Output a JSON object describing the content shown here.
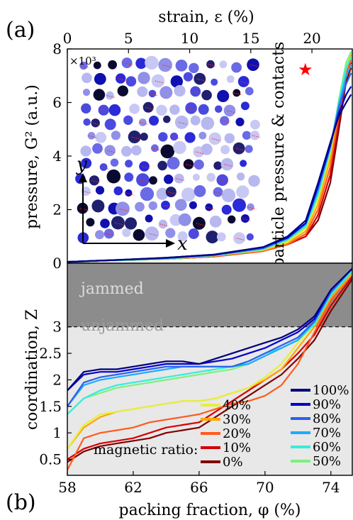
{
  "panel_a_label": "(a)",
  "panel_b_label": "(b)",
  "chart_data": [
    {
      "type": "line",
      "panel": "a",
      "xlabel_top": "strain, ε (%)",
      "xlim_top": [
        0,
        23.3
      ],
      "xticks_top": [
        0,
        5,
        10,
        15,
        20
      ],
      "ylabel": "pressure, G² (a.u.)",
      "ylim": [
        0,
        8
      ],
      "yticks": [
        0,
        2,
        4,
        6,
        8
      ],
      "multiplier": "×10³",
      "inset_label": "particle pressure & contacts",
      "inset_axis_y": "y",
      "inset_axis_x": "x",
      "colors": [
        "#7f0000",
        "#d40000",
        "#ff5a1f",
        "#ffa500",
        "#e6f03c",
        "#7ff07f",
        "#33eedd",
        "#1eaaff",
        "#2a62ee",
        "#0000cc",
        "#000080"
      ],
      "series": [
        {
          "name": "0%",
          "x": [
            0,
            4,
            8,
            12,
            16,
            18,
            19.5,
            20.5,
            21.5,
            22.2,
            22.8,
            23.2
          ],
          "y": [
            0.05,
            0.1,
            0.15,
            0.25,
            0.45,
            0.7,
            1.0,
            1.6,
            3.0,
            5.0,
            6.8,
            7.3
          ]
        },
        {
          "name": "10%",
          "x": [
            0,
            4,
            8,
            12,
            16,
            18,
            19.5,
            20.5,
            21.5,
            22.2,
            22.8,
            23.2
          ],
          "y": [
            0.05,
            0.1,
            0.15,
            0.25,
            0.45,
            0.7,
            1.0,
            1.8,
            3.3,
            5.3,
            7.0,
            7.5
          ]
        },
        {
          "name": "20%",
          "x": [
            0,
            4,
            8,
            12,
            16,
            18,
            19.5,
            20.5,
            21.5,
            22.2,
            22.8,
            23.2
          ],
          "y": [
            0.05,
            0.1,
            0.15,
            0.25,
            0.45,
            0.7,
            1.1,
            2.0,
            3.6,
            5.5,
            7.1,
            7.6
          ]
        },
        {
          "name": "30%",
          "x": [
            0,
            4,
            8,
            12,
            16,
            18,
            19.5,
            20.5,
            21.5,
            22.2,
            22.8,
            23.2
          ],
          "y": [
            0.05,
            0.1,
            0.15,
            0.28,
            0.48,
            0.75,
            1.2,
            2.2,
            3.9,
            5.8,
            7.3,
            7.8
          ]
        },
        {
          "name": "40%",
          "x": [
            0,
            4,
            8,
            12,
            16,
            18,
            19.5,
            20.5,
            21.5,
            22.2,
            22.8,
            23.2
          ],
          "y": [
            0.05,
            0.1,
            0.15,
            0.28,
            0.5,
            0.8,
            1.3,
            2.4,
            4.1,
            6.0,
            7.4,
            7.9
          ]
        },
        {
          "name": "50%",
          "x": [
            0,
            4,
            8,
            12,
            16,
            18,
            19.5,
            20.5,
            21.5,
            22.2,
            22.8,
            23.2
          ],
          "y": [
            0.05,
            0.1,
            0.15,
            0.28,
            0.5,
            0.85,
            1.35,
            2.5,
            4.2,
            6.1,
            7.5,
            7.9
          ]
        },
        {
          "name": "60%",
          "x": [
            0,
            4,
            8,
            12,
            16,
            18,
            19.5,
            20.5,
            21.5,
            22.2,
            22.8,
            23.2
          ],
          "y": [
            0.05,
            0.1,
            0.18,
            0.3,
            0.55,
            0.9,
            1.4,
            2.6,
            4.3,
            6.0,
            7.3,
            7.7
          ]
        },
        {
          "name": "70%",
          "x": [
            0,
            4,
            8,
            12,
            16,
            18,
            19.5,
            20.5,
            21.5,
            22.2,
            22.8,
            23.2
          ],
          "y": [
            0.05,
            0.12,
            0.18,
            0.3,
            0.55,
            0.9,
            1.45,
            2.7,
            4.3,
            5.9,
            7.0,
            7.4
          ]
        },
        {
          "name": "80%",
          "x": [
            0,
            4,
            8,
            12,
            16,
            18,
            19.5,
            20.5,
            21.5,
            22.2,
            22.8,
            23.2
          ],
          "y": [
            0.05,
            0.12,
            0.18,
            0.3,
            0.55,
            0.95,
            1.5,
            2.8,
            4.4,
            5.8,
            6.7,
            7.1
          ]
        },
        {
          "name": "90%",
          "x": [
            0,
            4,
            8,
            12,
            16,
            18,
            19.5,
            20.5,
            21.5,
            22.2,
            22.8,
            23.2
          ],
          "y": [
            0.05,
            0.12,
            0.2,
            0.32,
            0.6,
            0.95,
            1.5,
            2.9,
            4.4,
            5.6,
            6.3,
            6.6
          ]
        },
        {
          "name": "100%",
          "x": [
            0,
            4,
            8,
            12,
            16,
            18,
            19.5,
            20.5,
            21.5,
            22.2,
            22.8,
            23.2
          ],
          "y": [
            0.05,
            0.12,
            0.2,
            0.32,
            0.6,
            1.0,
            1.6,
            3.0,
            4.5,
            5.5,
            6.0,
            6.3
          ]
        }
      ]
    },
    {
      "type": "line",
      "panel": "b",
      "xlabel": "packing fraction, φ (%)",
      "xlim": [
        58,
        75.3
      ],
      "xticks": [
        58,
        62,
        66,
        70,
        74
      ],
      "ylabel": "coordination, Z",
      "ylim": [
        0.2,
        4.2
      ],
      "yticks": [
        0.5,
        1,
        1.5,
        2,
        2.5,
        3
      ],
      "jamming_threshold": 3,
      "region_top": "jammed",
      "region_bottom": "unjammed",
      "legend_title": "magnetic ratio:",
      "colors": [
        "#7f0000",
        "#d40000",
        "#ff5a1f",
        "#ffa500",
        "#e6f03c",
        "#7ff07f",
        "#33eedd",
        "#1eaaff",
        "#2a62ee",
        "#0000cc",
        "#000080"
      ],
      "series": [
        {
          "name": "0%",
          "x": [
            58,
            59,
            60,
            61,
            62,
            63,
            64,
            65,
            66,
            67,
            68,
            69,
            70,
            71,
            72,
            73,
            74,
            75.3
          ],
          "y": [
            0.45,
            0.65,
            0.75,
            0.8,
            0.85,
            0.9,
            1.0,
            1.05,
            1.1,
            1.3,
            1.5,
            1.7,
            1.9,
            2.1,
            2.4,
            2.75,
            3.3,
            3.9
          ]
        },
        {
          "name": "10%",
          "x": [
            58,
            59,
            60,
            61,
            62,
            63,
            64,
            65,
            66,
            67,
            68,
            69,
            70,
            71,
            72,
            73,
            74,
            75.3
          ],
          "y": [
            0.5,
            0.7,
            0.8,
            0.85,
            0.9,
            1.0,
            1.1,
            1.15,
            1.2,
            1.4,
            1.6,
            1.8,
            2.0,
            2.2,
            2.5,
            2.85,
            3.4,
            3.95
          ]
        },
        {
          "name": "20%",
          "x": [
            58,
            59,
            60,
            61,
            62,
            63,
            64,
            65,
            66,
            67,
            68,
            69,
            70,
            71,
            72,
            73,
            74,
            75.3
          ],
          "y": [
            0.3,
            0.9,
            1.0,
            1.05,
            1.1,
            1.2,
            1.25,
            1.3,
            1.35,
            1.45,
            1.55,
            1.6,
            1.7,
            1.9,
            2.3,
            2.9,
            3.5,
            4.0
          ]
        },
        {
          "name": "30%",
          "x": [
            58,
            59,
            60,
            61,
            62,
            63,
            64,
            65,
            66,
            67,
            68,
            69,
            70,
            71,
            72,
            73,
            74,
            75.3
          ],
          "y": [
            0.7,
            1.1,
            1.3,
            1.4,
            1.45,
            1.5,
            1.55,
            1.6,
            1.6,
            1.65,
            1.75,
            1.85,
            2.0,
            2.2,
            2.6,
            3.0,
            3.55,
            4.0
          ]
        },
        {
          "name": "40%",
          "x": [
            58,
            59,
            60,
            61,
            62,
            63,
            64,
            65,
            66,
            67,
            68,
            69,
            70,
            71,
            72,
            73,
            74,
            75.3
          ],
          "y": [
            0.7,
            1.15,
            1.35,
            1.4,
            1.45,
            1.5,
            1.55,
            1.6,
            1.6,
            1.65,
            1.75,
            1.85,
            2.05,
            2.3,
            2.7,
            3.05,
            3.6,
            4.05
          ]
        },
        {
          "name": "50%",
          "x": [
            58,
            59,
            60,
            61,
            62,
            63,
            64,
            65,
            66,
            67,
            68,
            69,
            70,
            71,
            72,
            73,
            74,
            75.3
          ],
          "y": [
            1.35,
            1.65,
            1.75,
            1.85,
            1.9,
            1.95,
            2.0,
            2.05,
            2.1,
            2.15,
            2.2,
            2.3,
            2.45,
            2.6,
            2.75,
            3.05,
            3.6,
            4.05
          ]
        },
        {
          "name": "60%",
          "x": [
            58,
            59,
            60,
            61,
            62,
            63,
            64,
            65,
            66,
            67,
            68,
            69,
            70,
            71,
            72,
            73,
            74,
            75.3
          ],
          "y": [
            1.35,
            1.65,
            1.8,
            1.9,
            1.95,
            2.0,
            2.05,
            2.1,
            2.15,
            2.2,
            2.25,
            2.35,
            2.5,
            2.6,
            2.75,
            3.05,
            3.6,
            4.05
          ]
        },
        {
          "name": "70%",
          "x": [
            58,
            59,
            60,
            61,
            62,
            63,
            64,
            65,
            66,
            67,
            68,
            69,
            70,
            71,
            72,
            73,
            74,
            75.3
          ],
          "y": [
            1.5,
            1.9,
            2.0,
            2.05,
            2.1,
            2.15,
            2.2,
            2.25,
            2.25,
            2.25,
            2.25,
            2.3,
            2.45,
            2.6,
            2.75,
            3.1,
            3.65,
            4.1
          ]
        },
        {
          "name": "80%",
          "x": [
            58,
            59,
            60,
            61,
            62,
            63,
            64,
            65,
            66,
            67,
            68,
            69,
            70,
            71,
            72,
            73,
            74,
            75.3
          ],
          "y": [
            1.5,
            1.95,
            2.05,
            2.1,
            2.15,
            2.2,
            2.25,
            2.25,
            2.25,
            2.25,
            2.25,
            2.35,
            2.5,
            2.65,
            2.8,
            3.1,
            3.65,
            4.1
          ]
        },
        {
          "name": "90%",
          "x": [
            58,
            59,
            60,
            61,
            62,
            63,
            64,
            65,
            66,
            67,
            68,
            69,
            70,
            71,
            72,
            73,
            74,
            75.3
          ],
          "y": [
            1.8,
            2.1,
            2.15,
            2.15,
            2.2,
            2.25,
            2.3,
            2.3,
            2.3,
            2.35,
            2.4,
            2.5,
            2.6,
            2.75,
            2.9,
            3.15,
            3.7,
            4.1
          ]
        },
        {
          "name": "100%",
          "x": [
            58,
            59,
            60,
            61,
            62,
            63,
            64,
            65,
            66,
            67,
            68,
            69,
            70,
            71,
            72,
            73,
            74,
            75.3
          ],
          "y": [
            1.8,
            2.15,
            2.2,
            2.2,
            2.25,
            2.3,
            2.35,
            2.35,
            2.3,
            2.4,
            2.5,
            2.6,
            2.7,
            2.8,
            2.95,
            3.2,
            3.7,
            4.1
          ]
        }
      ]
    }
  ]
}
